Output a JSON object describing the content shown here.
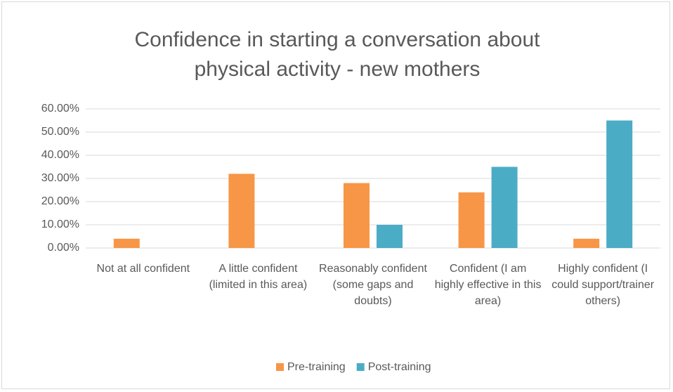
{
  "chart_data": {
    "type": "bar",
    "title": "Confidence in starting a conversation about physical activity - new mothers",
    "categories": [
      "Not at all confident",
      "A little confident (limited in this area)",
      "Reasonably confident (some gaps and doubts)",
      "Confident (I am highly effective in this area)",
      "Highly confident (I could support/trainer others)"
    ],
    "series": [
      {
        "name": "Pre-training",
        "color": "#f79646",
        "values": [
          4,
          32,
          28,
          24,
          4
        ]
      },
      {
        "name": "Post-training",
        "color": "#4bacc6",
        "values": [
          0,
          0,
          10,
          35,
          55
        ]
      }
    ],
    "ylim": [
      0,
      60
    ],
    "yticks": [
      {
        "value": 0,
        "label": "0.00%"
      },
      {
        "value": 10,
        "label": "10.00%"
      },
      {
        "value": 20,
        "label": "20.00%"
      },
      {
        "value": 30,
        "label": "30.00%"
      },
      {
        "value": 40,
        "label": "40.00%"
      },
      {
        "value": 50,
        "label": "50.00%"
      },
      {
        "value": 60,
        "label": "60.00%"
      }
    ],
    "grid": true,
    "legend": "bottom"
  }
}
